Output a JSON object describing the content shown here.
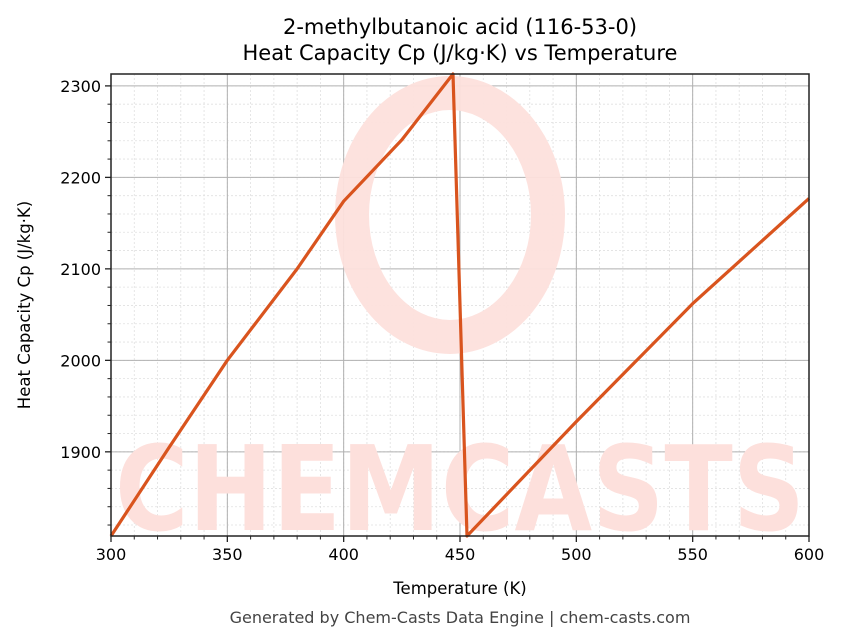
{
  "title": {
    "line1": "2-methylbutanoic acid (116-53-0)",
    "line2": "Heat Capacity Cp (J/kg·K) vs Temperature"
  },
  "footer": "Generated by Chem-Casts Data Engine | chem-casts.com",
  "watermark": "CHEMCASTS",
  "colors": {
    "line": "#d9541e",
    "watermark": "#fde0dc",
    "grid_major": "#b0b0b0",
    "grid_minor": "#e0e0e0"
  },
  "chart_data": {
    "type": "line",
    "title": "2-methylbutanoic acid (116-53-0)\nHeat Capacity Cp (J/kg·K) vs Temperature",
    "xlabel": "Temperature (K)",
    "ylabel": "Heat Capacity Cp (J/kg·K)",
    "xlim": [
      300,
      600
    ],
    "ylim": [
      1808,
      2313
    ],
    "xticks": [
      300,
      350,
      400,
      450,
      500,
      550,
      600
    ],
    "yticks": [
      1900,
      2000,
      2100,
      2200,
      2300
    ],
    "grid": true,
    "minor_grid": true,
    "legend": null,
    "series": [
      {
        "name": "Cp",
        "x": [
          300,
          325,
          350,
          380,
          400,
          425,
          447,
          453,
          500,
          550,
          600
        ],
        "y": [
          1808,
          1905,
          2000,
          2100,
          2174,
          2241,
          2313,
          1808,
          1933,
          2062,
          2177
        ]
      }
    ]
  }
}
